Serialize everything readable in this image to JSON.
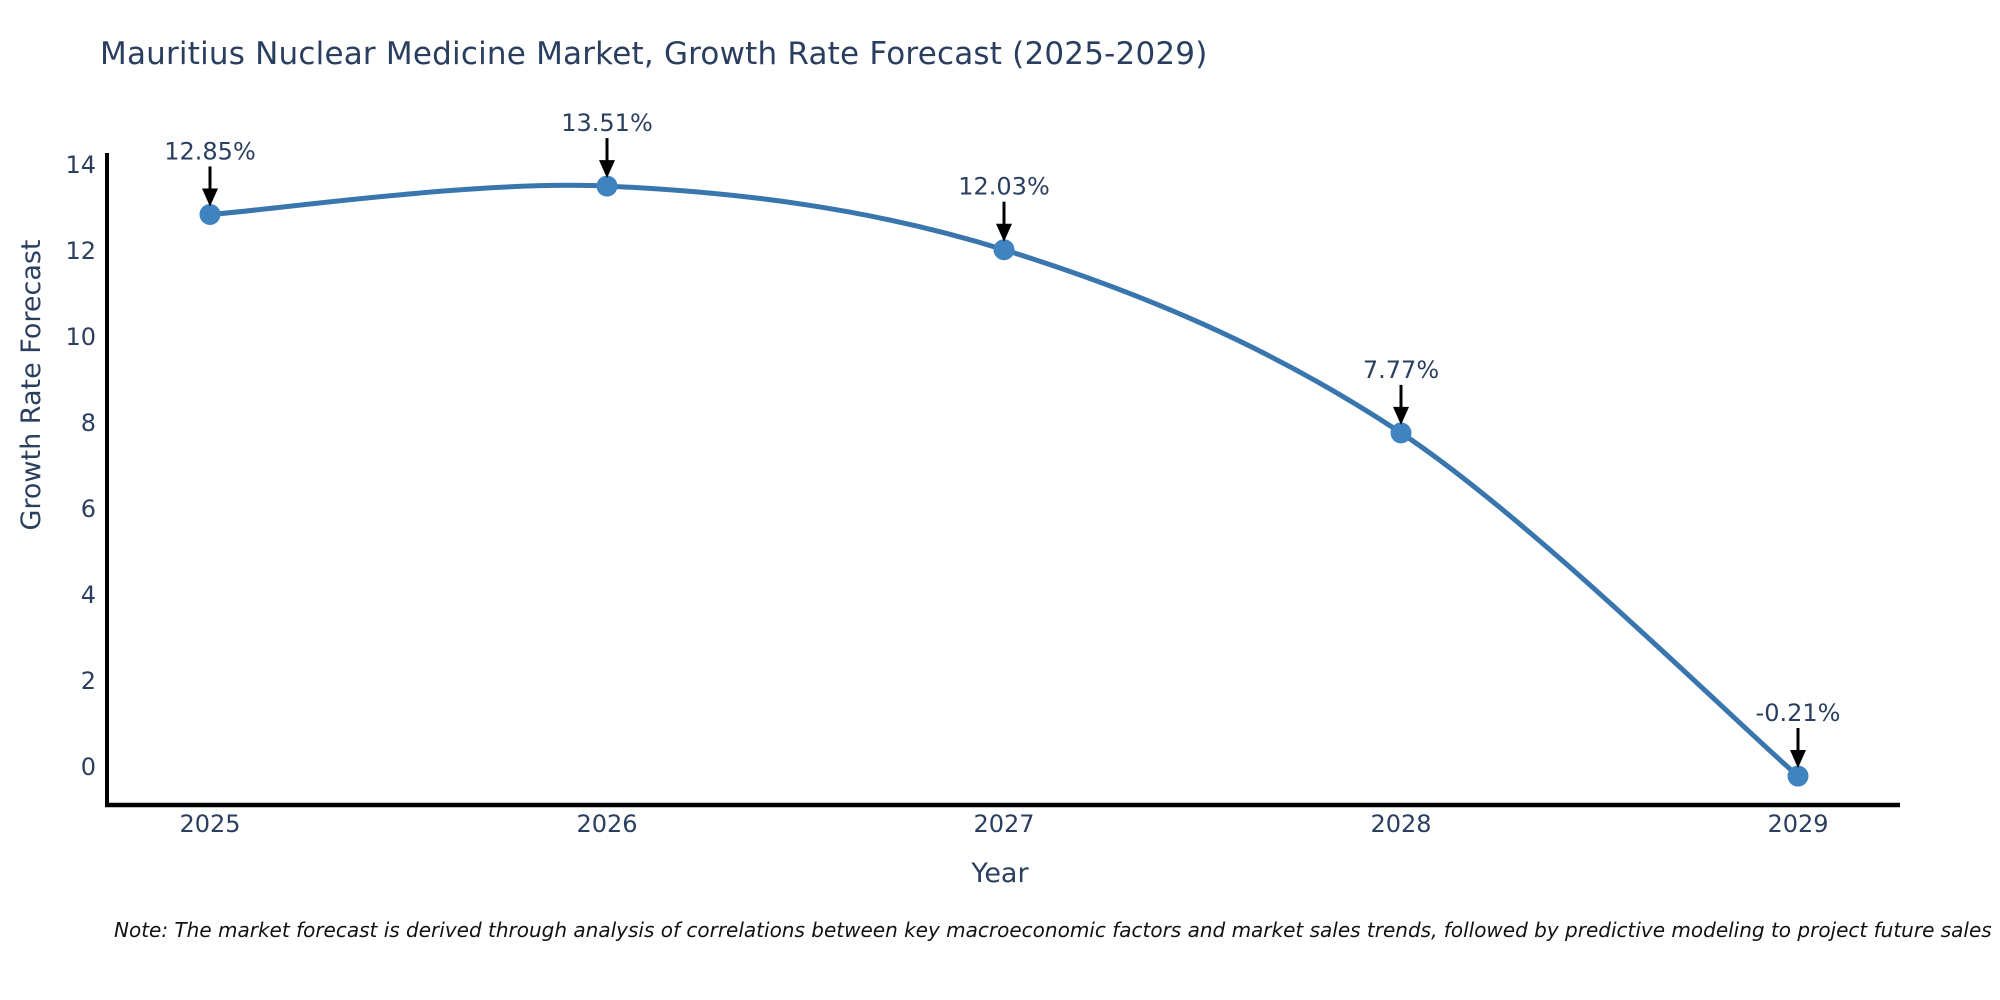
{
  "chart_data": {
    "type": "line",
    "curve": "spline",
    "title": "Mauritius Nuclear Medicine Market, Growth Rate Forecast (2025-2029)",
    "xlabel": "Year",
    "ylabel": "Growth Rate Forecast",
    "x": [
      2025,
      2026,
      2027,
      2028,
      2029
    ],
    "y": [
      12.85,
      13.51,
      12.03,
      7.77,
      -0.21
    ],
    "point_labels": [
      "12.85%",
      "13.51%",
      "12.03%",
      "7.77%",
      "-0.21%"
    ],
    "x_tick_labels": [
      "2025",
      "2026",
      "2027",
      "2028",
      "2029"
    ],
    "y_ticks": [
      0,
      2,
      4,
      6,
      8,
      10,
      12,
      14
    ],
    "ylim": [
      -0.9,
      14.3
    ],
    "grid": false,
    "legend": false,
    "colors": {
      "line": "#3a76ae",
      "marker": "#3f83c1",
      "text": "#2a3f5f",
      "axis": "#000000",
      "annotation_arrow": "#000000",
      "note_text": "#111111"
    },
    "note": "Note: The market forecast is derived through analysis of correlations between key macroeconomic factors and market sales trends, followed by predictive modeling to project future sales"
  }
}
